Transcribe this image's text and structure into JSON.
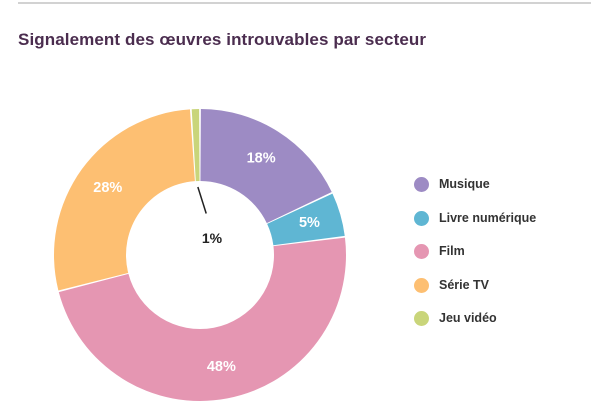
{
  "chart_data": {
    "type": "pie",
    "title": "Signalement des œuvres introuvables par secteur",
    "categories": [
      "Musique",
      "Livre numérique",
      "Film",
      "Série TV",
      "Jeu vidéo"
    ],
    "values": [
      18,
      5,
      48,
      28,
      1
    ],
    "labels": [
      "18%",
      "5%",
      "48%",
      "28%",
      "1%"
    ],
    "unit": "%",
    "colors": [
      "#9d8bc4",
      "#5fb6d3",
      "#e596b2",
      "#fdbf72",
      "#c9d57a"
    ],
    "label_colors": [
      "#ffffff",
      "#ffffff",
      "#ffffff",
      "#ffffff",
      "#222222"
    ],
    "donut": true,
    "legend_position": "right",
    "grid": false
  }
}
